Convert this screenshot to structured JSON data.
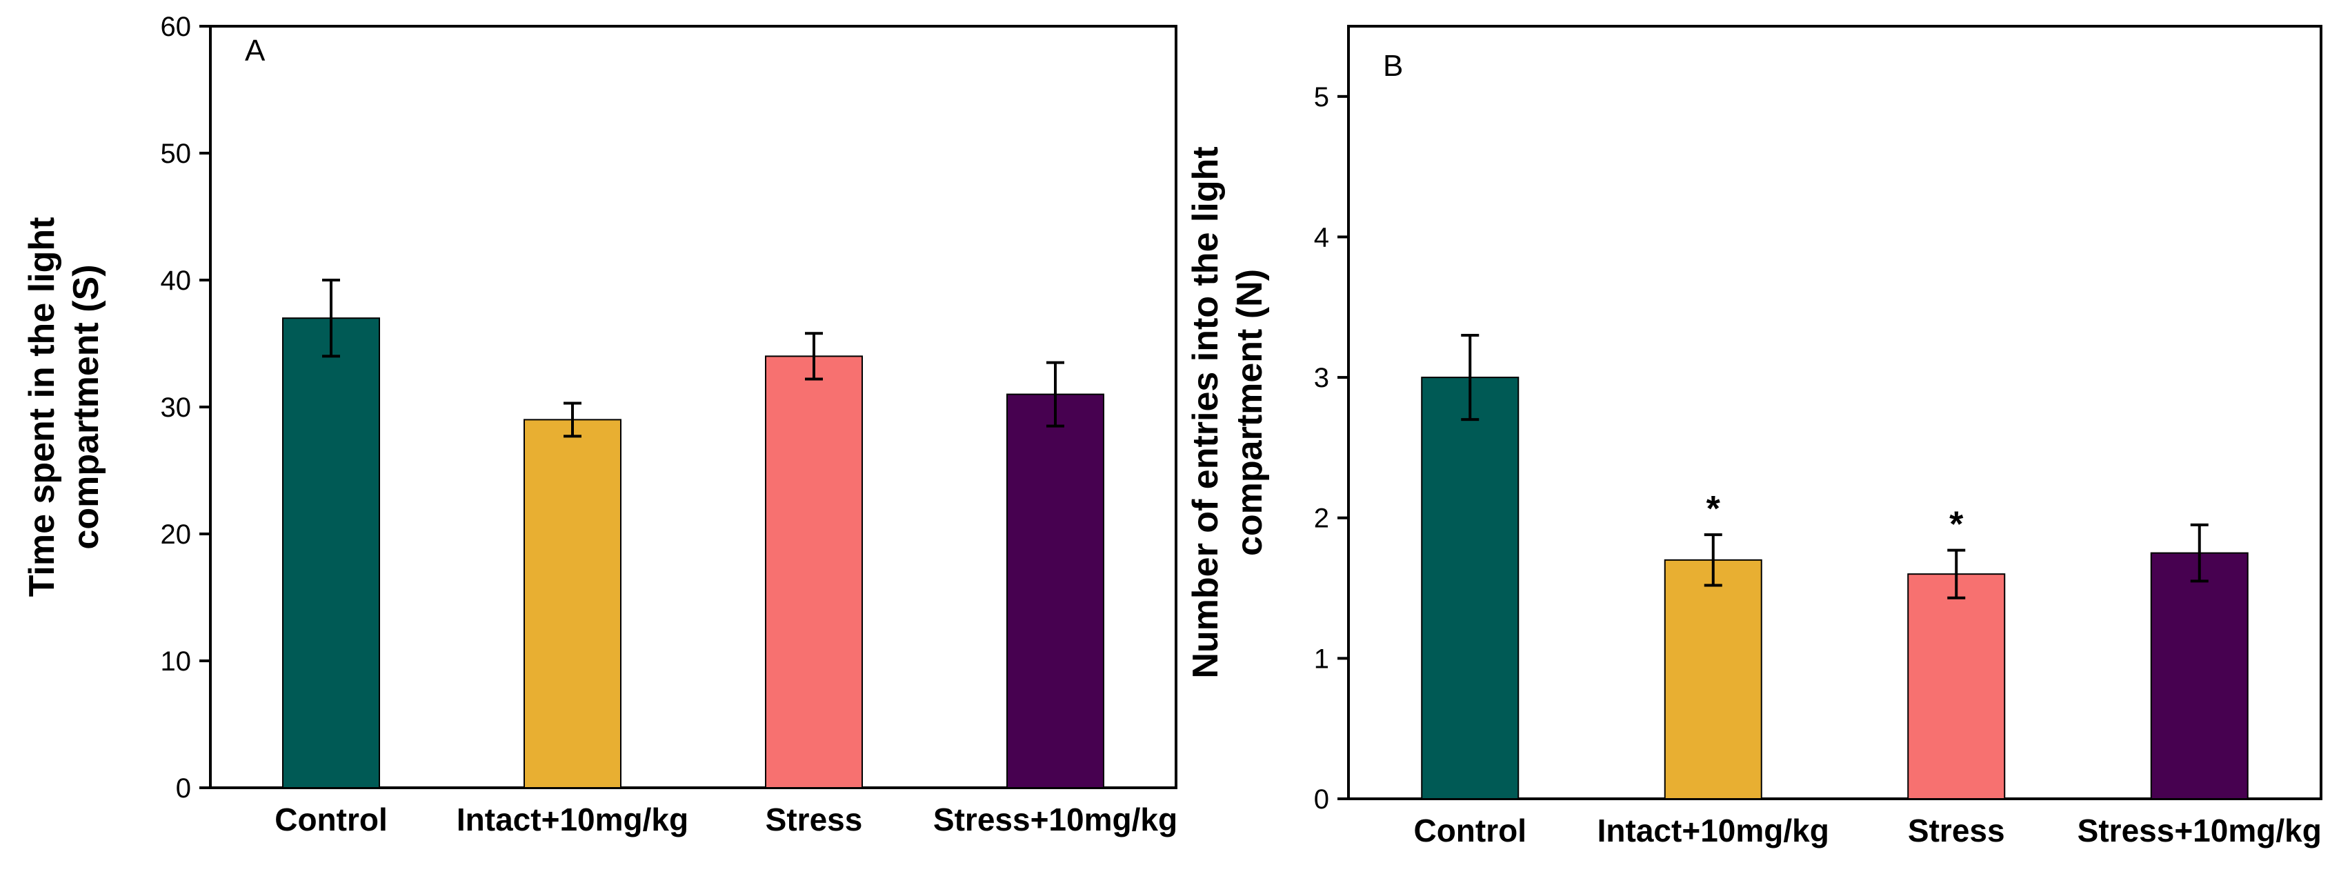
{
  "chart_data": [
    {
      "type": "bar",
      "panel_label": "A",
      "title": "",
      "xlabel": "",
      "ylabel_lines": [
        "Time spent in the light",
        "compartment (S)"
      ],
      "ylim": [
        0,
        60
      ],
      "yticks": [
        0,
        10,
        20,
        30,
        40,
        50,
        60
      ],
      "grid": false,
      "categories": [
        "Control",
        "Intact+10mg/kg",
        "Stress",
        "Stress+10mg/kg"
      ],
      "values": [
        37,
        29,
        34,
        31
      ],
      "errors": [
        3,
        1.3,
        1.8,
        2.5
      ],
      "annotations": [
        "",
        "",
        "",
        ""
      ],
      "colors": [
        "#005A55",
        "#E8AF32",
        "#F77170",
        "#470150"
      ]
    },
    {
      "type": "bar",
      "panel_label": "B",
      "title": "",
      "xlabel": "",
      "ylabel_lines": [
        "Number of entries into the light",
        "compartment (N)"
      ],
      "ylim": [
        0,
        5.5
      ],
      "yticks": [
        0,
        1,
        2,
        3,
        4,
        5
      ],
      "grid": false,
      "categories": [
        "Control",
        "Intact+10mg/kg",
        "Stress",
        "Stress+10mg/kg"
      ],
      "values": [
        3.0,
        1.7,
        1.6,
        1.75
      ],
      "errors": [
        0.3,
        0.18,
        0.17,
        0.2
      ],
      "annotations": [
        "",
        "*",
        "*",
        ""
      ],
      "colors": [
        "#005A55",
        "#E8AF32",
        "#F77170",
        "#470150"
      ]
    }
  ]
}
